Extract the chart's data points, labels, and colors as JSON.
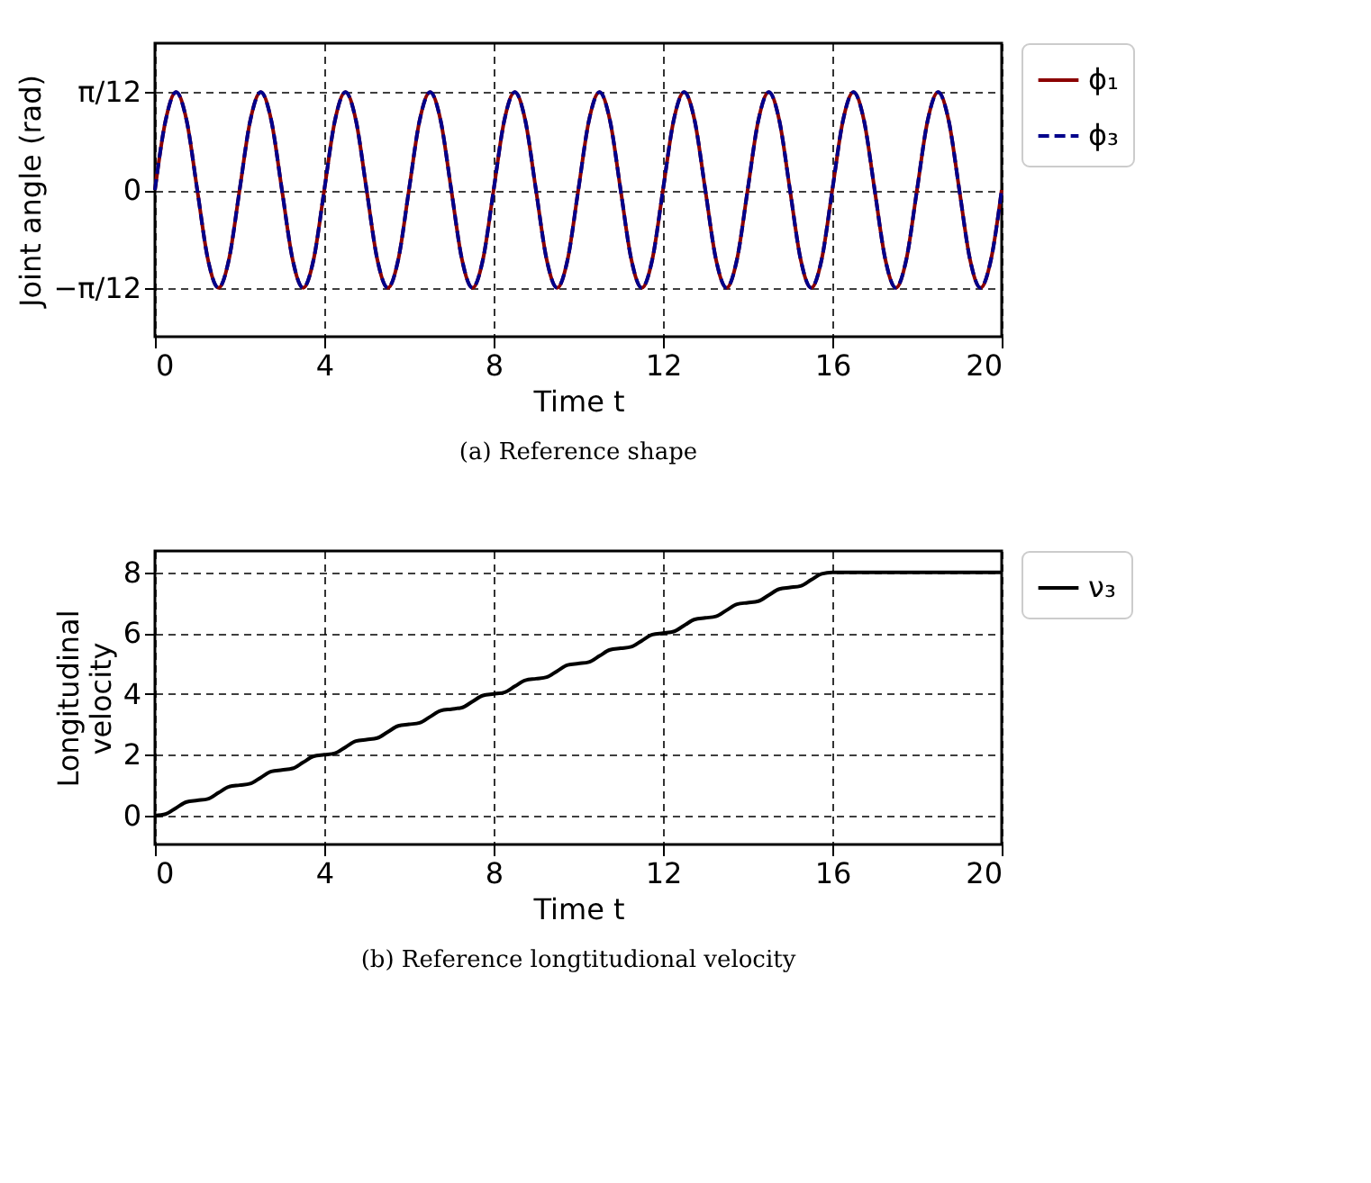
{
  "chart_data": [
    {
      "type": "line",
      "title": "(a) Reference shape",
      "xlabel": "Time t",
      "ylabel": "Joint angle (rad)",
      "x": [
        0,
        0.25,
        0.5,
        0.75,
        1,
        1.25,
        1.5,
        1.75,
        2,
        2.25,
        2.5,
        2.75,
        3,
        3.25,
        3.5,
        3.75,
        4,
        4.25,
        4.5,
        4.75,
        5,
        5.25,
        5.5,
        5.75,
        6,
        6.25,
        6.5,
        6.75,
        7,
        7.25,
        7.5,
        7.75,
        8,
        8.25,
        8.5,
        8.75,
        9,
        9.25,
        9.5,
        9.75,
        10,
        10.25,
        10.5,
        10.75,
        11,
        11.25,
        11.5,
        11.75,
        12,
        12.25,
        12.5,
        12.75,
        13,
        13.25,
        13.5,
        13.75,
        14,
        14.25,
        14.5,
        14.75,
        15,
        15.25,
        15.5,
        15.75,
        16,
        16.25,
        16.5,
        16.75,
        17,
        17.25,
        17.5,
        17.75,
        18,
        18.25,
        18.5,
        18.75,
        19,
        19.25,
        19.5,
        19.75,
        20
      ],
      "series": [
        {
          "name": "ϕ₁",
          "color": "#8b0000",
          "line_style": "solid",
          "values": [
            0,
            0.185,
            0.262,
            0.185,
            0,
            -0.185,
            -0.262,
            -0.185,
            0,
            0.185,
            0.262,
            0.185,
            0,
            -0.185,
            -0.262,
            -0.185,
            0,
            0.185,
            0.262,
            0.185,
            0,
            -0.185,
            -0.262,
            -0.185,
            0,
            0.185,
            0.262,
            0.185,
            0,
            -0.185,
            -0.262,
            -0.185,
            0,
            0.185,
            0.262,
            0.185,
            0,
            -0.185,
            -0.262,
            -0.185,
            0,
            0.185,
            0.262,
            0.185,
            0,
            -0.185,
            -0.262,
            -0.185,
            0,
            0.185,
            0.262,
            0.185,
            0,
            -0.185,
            -0.262,
            -0.185,
            0,
            0.185,
            0.262,
            0.185,
            0,
            -0.185,
            -0.262,
            -0.185,
            0,
            0.185,
            0.262,
            0.185,
            0,
            -0.185,
            -0.262,
            -0.185,
            0,
            0.185,
            0.262,
            0.185,
            0,
            -0.185,
            -0.262,
            -0.185,
            0
          ]
        },
        {
          "name": "ϕ₃",
          "color": "#00008b",
          "line_style": "dashed",
          "values": [
            0,
            0.185,
            0.262,
            0.185,
            0,
            -0.185,
            -0.262,
            -0.185,
            0,
            0.185,
            0.262,
            0.185,
            0,
            -0.185,
            -0.262,
            -0.185,
            0,
            0.185,
            0.262,
            0.185,
            0,
            -0.185,
            -0.262,
            -0.185,
            0,
            0.185,
            0.262,
            0.185,
            0,
            -0.185,
            -0.262,
            -0.185,
            0,
            0.185,
            0.262,
            0.185,
            0,
            -0.185,
            -0.262,
            -0.185,
            0,
            0.185,
            0.262,
            0.185,
            0,
            -0.185,
            -0.262,
            -0.185,
            0,
            0.185,
            0.262,
            0.185,
            0,
            -0.185,
            -0.262,
            -0.185,
            0,
            0.185,
            0.262,
            0.185,
            0,
            -0.185,
            -0.262,
            -0.185,
            0,
            0.185,
            0.262,
            0.185,
            0,
            -0.185,
            -0.262,
            -0.185,
            0,
            0.185,
            0.262,
            0.185,
            0,
            -0.185,
            -0.262,
            -0.185,
            0
          ]
        }
      ],
      "xlim": [
        0,
        20
      ],
      "xticks": [
        0,
        4,
        8,
        12,
        16,
        20
      ],
      "ylim": [
        -0.393,
        0.393
      ],
      "yticks": [
        {
          "value": -0.2618,
          "label": "−π/12"
        },
        0,
        {
          "value": 0.2618,
          "label": "π/12"
        }
      ],
      "grid": true,
      "legend": "top right"
    },
    {
      "type": "line",
      "title": "(b) Reference longtitudional velocity",
      "xlabel": "Time t",
      "ylabel": "Longitudinal velocity",
      "series": [
        {
          "name": "ν₃",
          "color": "#000000",
          "line_style": "solid",
          "x": [
            0,
            0.25,
            0.5,
            0.75,
            1,
            1.25,
            1.5,
            1.75,
            2,
            2.25,
            2.5,
            2.75,
            3,
            3.25,
            3.5,
            3.75,
            4,
            4.25,
            4.5,
            4.75,
            5,
            5.25,
            5.5,
            5.75,
            6,
            6.25,
            6.5,
            6.75,
            7,
            7.25,
            7.5,
            7.75,
            8,
            8.25,
            8.5,
            8.75,
            9,
            9.25,
            9.5,
            9.75,
            10,
            10.25,
            10.5,
            10.75,
            11,
            11.25,
            11.5,
            11.75,
            12,
            12.25,
            12.5,
            12.75,
            13,
            13.25,
            13.5,
            13.75,
            14,
            14.25,
            14.5,
            14.75,
            15,
            15.25,
            15.5,
            15.75,
            16,
            20
          ],
          "values": [
            0,
            0.05,
            0.25,
            0.45,
            0.5,
            0.55,
            0.75,
            0.95,
            1,
            1.05,
            1.25,
            1.45,
            1.5,
            1.55,
            1.75,
            1.95,
            2,
            2.05,
            2.25,
            2.45,
            2.5,
            2.55,
            2.75,
            2.95,
            3,
            3.05,
            3.25,
            3.45,
            3.5,
            3.55,
            3.75,
            3.95,
            4,
            4.05,
            4.25,
            4.45,
            4.5,
            4.55,
            4.75,
            4.95,
            5,
            5.05,
            5.25,
            5.45,
            5.5,
            5.55,
            5.75,
            5.95,
            6,
            6.05,
            6.25,
            6.45,
            6.5,
            6.55,
            6.75,
            6.95,
            7,
            7.05,
            7.25,
            7.45,
            7.5,
            7.55,
            7.75,
            7.95,
            8,
            8
          ]
        }
      ],
      "xlim": [
        0,
        20
      ],
      "xticks": [
        0,
        4,
        8,
        12,
        16,
        20
      ],
      "ylim": [
        -0.95,
        8.7
      ],
      "yticks": [
        0,
        2,
        4,
        6,
        8
      ],
      "grid": true,
      "legend": "top right"
    }
  ]
}
